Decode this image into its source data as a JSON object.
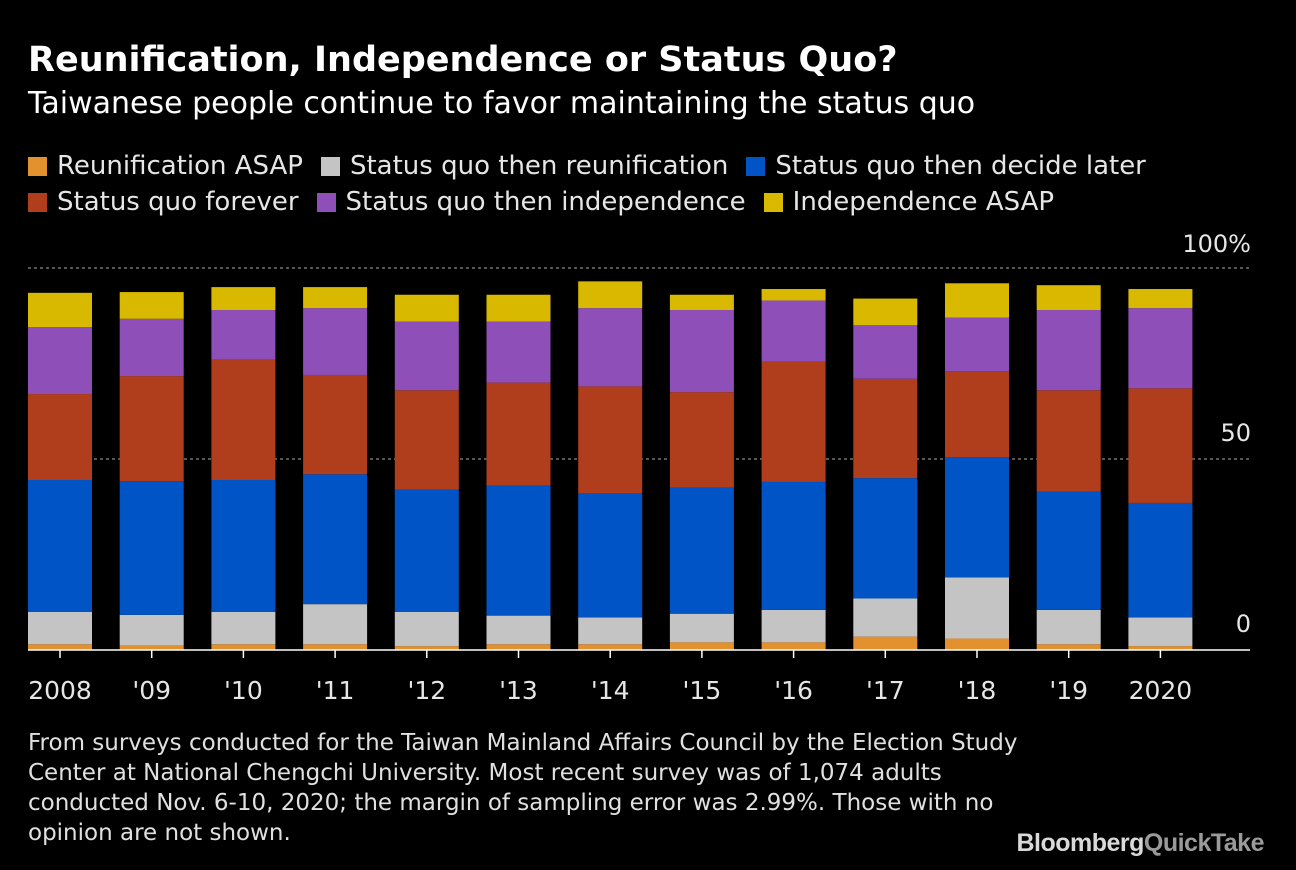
{
  "header": {
    "title": "Reunification, Independence or Status Quo?",
    "subtitle": "Taiwanese people continue to favor maintaining the status quo"
  },
  "legend": {
    "row1": [
      {
        "label": "Reunification ASAP",
        "color": "#e3912f"
      },
      {
        "label": "Status quo then reunification",
        "color": "#c4c4c4"
      },
      {
        "label": "Status quo then decide later",
        "color": "#0054c5"
      }
    ],
    "row2": [
      {
        "label": "Status quo forever",
        "color": "#b03e1c"
      },
      {
        "label": "Status quo then independence",
        "color": "#8e4fb8"
      },
      {
        "label": "Independence ASAP",
        "color": "#d9b800"
      }
    ]
  },
  "chart_data": {
    "type": "bar",
    "stacked": true,
    "categories": [
      "2008",
      "'09",
      "'10",
      "'11",
      "'12",
      "'13",
      "'14",
      "'15",
      "'16",
      "'17",
      "'18",
      "'19",
      "2020"
    ],
    "ylim": [
      0,
      100
    ],
    "y_ticks": [
      {
        "value": 0,
        "label": "0"
      },
      {
        "value": 50,
        "label": "50"
      },
      {
        "value": 100,
        "label": "100%"
      }
    ],
    "gridlines": [
      50,
      100
    ],
    "series": [
      {
        "name": "Reunification ASAP",
        "color": "#e3912f",
        "values": [
          1.5,
          1.2,
          1.5,
          1.5,
          1.0,
          1.5,
          1.5,
          2.0,
          2.0,
          3.5,
          3.0,
          1.5,
          1.0
        ]
      },
      {
        "name": "Status quo then reunification",
        "color": "#c4c4c4",
        "values": [
          8.5,
          8.0,
          8.5,
          10.5,
          9.0,
          7.5,
          7.0,
          7.5,
          8.5,
          10.0,
          16.0,
          9.0,
          7.5
        ]
      },
      {
        "name": "Status quo then decide later",
        "color": "#0054c5",
        "values": [
          34.5,
          35.0,
          34.5,
          34.0,
          32.0,
          34.0,
          32.5,
          33.0,
          33.5,
          31.5,
          31.5,
          31.0,
          30.0
        ]
      },
      {
        "name": "Status quo forever",
        "color": "#b03e1c",
        "values": [
          22.5,
          27.5,
          31.5,
          26.0,
          26.0,
          27.0,
          28.0,
          25.0,
          31.5,
          26.0,
          22.5,
          26.5,
          30.0
        ]
      },
      {
        "name": "Status quo then independence",
        "color": "#8e4fb8",
        "values": [
          17.5,
          15.0,
          13.0,
          17.5,
          18.0,
          16.0,
          20.5,
          21.5,
          16.0,
          14.0,
          14.0,
          21.0,
          21.0
        ]
      },
      {
        "name": "Independence ASAP",
        "color": "#d9b800",
        "values": [
          9.0,
          7.0,
          6.0,
          5.5,
          7.0,
          7.0,
          7.0,
          4.0,
          3.0,
          7.0,
          9.0,
          6.5,
          5.0
        ]
      }
    ]
  },
  "footnote": "From surveys conducted for the Taiwan Mainland Affairs Council by the Election Study Center at National Chengchi University. Most recent survey was of 1,074 adults conducted Nov. 6-10, 2020; the margin of sampling error was 2.99%. Those with no opinion are not shown.",
  "brand": {
    "part1": "Bloomberg",
    "part2": "QuickTake"
  }
}
